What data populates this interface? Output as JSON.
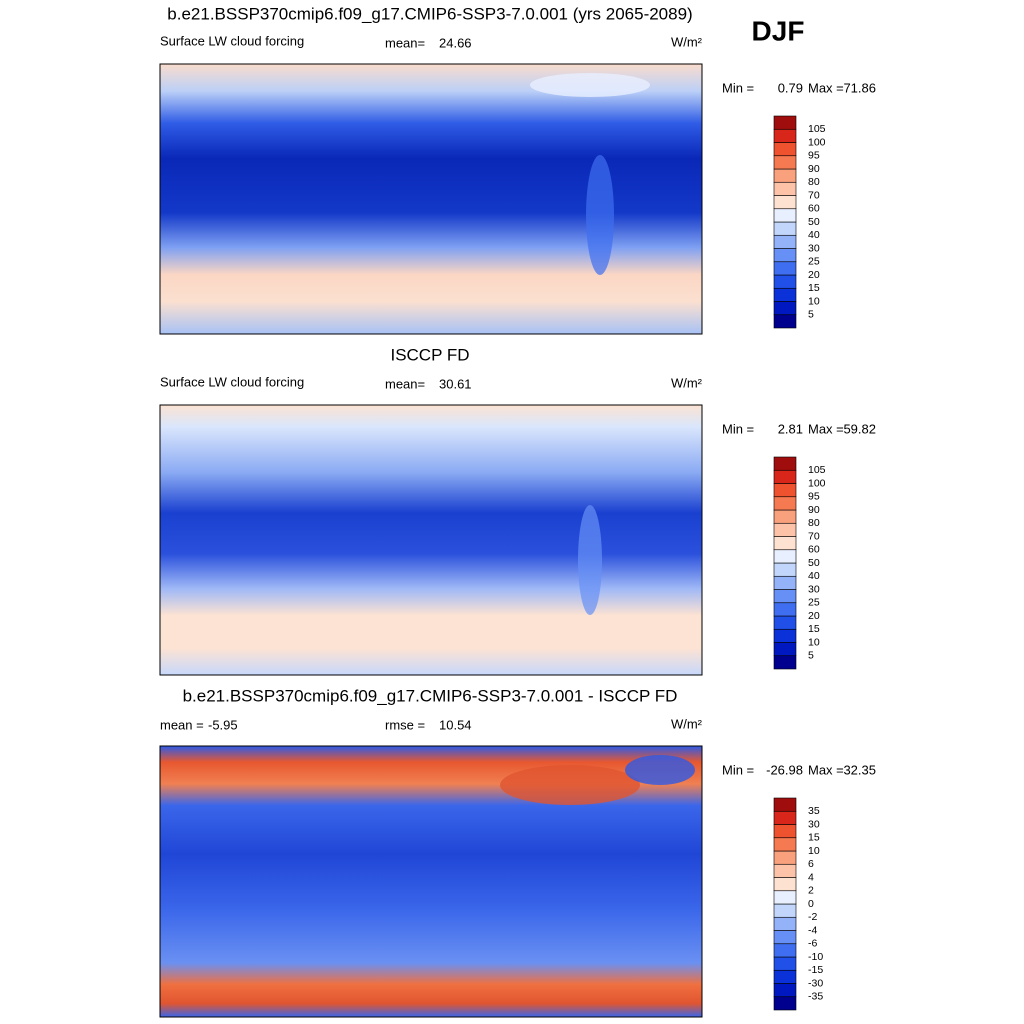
{
  "header": {
    "season": "DJF"
  },
  "panels": [
    {
      "title": "b.e21.BSSP370cmip6.f09_g17.CMIP6-SSP3-7.0.001 (yrs 2065-2089)",
      "subtitle": "Surface LW cloud forcing",
      "stats": [
        {
          "label": "mean=",
          "value": 24.66
        }
      ],
      "units": "W/m²",
      "min": {
        "label": "Min =",
        "value": 0.79
      },
      "max": {
        "label": "Max =",
        "value": 71.86
      },
      "colorbar": {
        "levels": [
          5,
          10,
          15,
          20,
          25,
          30,
          40,
          50,
          60,
          70,
          80,
          90,
          95,
          100,
          105
        ],
        "colors": [
          "#00008f",
          "#0018c0",
          "#0a32d8",
          "#2050e8",
          "#3f6ff0",
          "#6690f5",
          "#93b2f8",
          "#c2d6fb",
          "#e8efff",
          "#fde2d2",
          "#fcc3a8",
          "#f9a07c",
          "#f57a52",
          "#ee522e",
          "#d9261a",
          "#a00d0d"
        ]
      }
    },
    {
      "title": "ISCCP FD",
      "subtitle": "Surface LW cloud forcing",
      "stats": [
        {
          "label": "mean=",
          "value": 30.61
        }
      ],
      "units": "W/m²",
      "min": {
        "label": "Min =",
        "value": 2.81
      },
      "max": {
        "label": "Max =",
        "value": 59.82
      },
      "colorbar": {
        "levels": [
          5,
          10,
          15,
          20,
          25,
          30,
          40,
          50,
          60,
          70,
          80,
          90,
          95,
          100,
          105
        ],
        "colors": [
          "#00008f",
          "#0018c0",
          "#0a32d8",
          "#2050e8",
          "#3f6ff0",
          "#6690f5",
          "#93b2f8",
          "#c2d6fb",
          "#e8efff",
          "#fde2d2",
          "#fcc3a8",
          "#f9a07c",
          "#f57a52",
          "#ee522e",
          "#d9261a",
          "#a00d0d"
        ]
      }
    },
    {
      "title": "b.e21.BSSP370cmip6.f09_g17.CMIP6-SSP3-7.0.001 - ISCCP FD",
      "stats": [
        {
          "label": "mean =",
          "value": -5.95
        },
        {
          "label": "rmse =",
          "value": 10.54
        }
      ],
      "units": "W/m²",
      "min": {
        "label": "Min =",
        "value": -26.98
      },
      "max": {
        "label": "Max =",
        "value": 32.35
      },
      "colorbar": {
        "levels": [
          -35,
          -30,
          -15,
          -10,
          -6,
          -4,
          -2,
          0,
          2,
          4,
          6,
          10,
          15,
          30,
          35
        ],
        "colors": [
          "#00008f",
          "#0018c0",
          "#0a32d8",
          "#2050e8",
          "#3f6ff0",
          "#6690f5",
          "#93b2f8",
          "#c2d6fb",
          "#e8efff",
          "#fde2d2",
          "#fcc3a8",
          "#f9a07c",
          "#f57a52",
          "#ee522e",
          "#d9261a",
          "#a00d0d"
        ]
      }
    }
  ]
}
